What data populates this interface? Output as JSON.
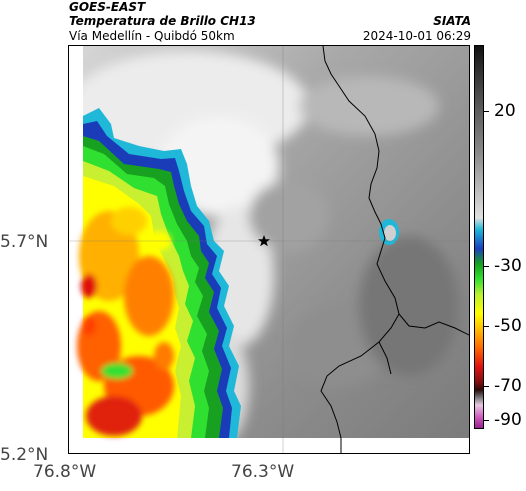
{
  "header": {
    "satellite": "GOES-EAST",
    "product": "Temperatura de Brillo CH13",
    "region": "Vía Medellín - Quibdó 50km",
    "brand": "SIATA",
    "timestamp": "2024-10-01 06:29"
  },
  "axes": {
    "lat_labels": [
      "5.7°N",
      "5.2°N"
    ],
    "lon_labels": [
      "76.8°W",
      "76.3°W"
    ]
  },
  "colorbar": {
    "labels": [
      "20",
      "-30",
      "-50",
      "-70",
      "-90"
    ]
  },
  "map": {
    "marker": "star-icon",
    "colors": {
      "warm_gray": "#8a8a8a",
      "cold_edge": "#1fb8d8",
      "deep_blue": "#1a3cb8",
      "green": "#30d030",
      "yellow": "#ffff00",
      "orange": "#ff8c00",
      "red": "#e01010"
    }
  }
}
